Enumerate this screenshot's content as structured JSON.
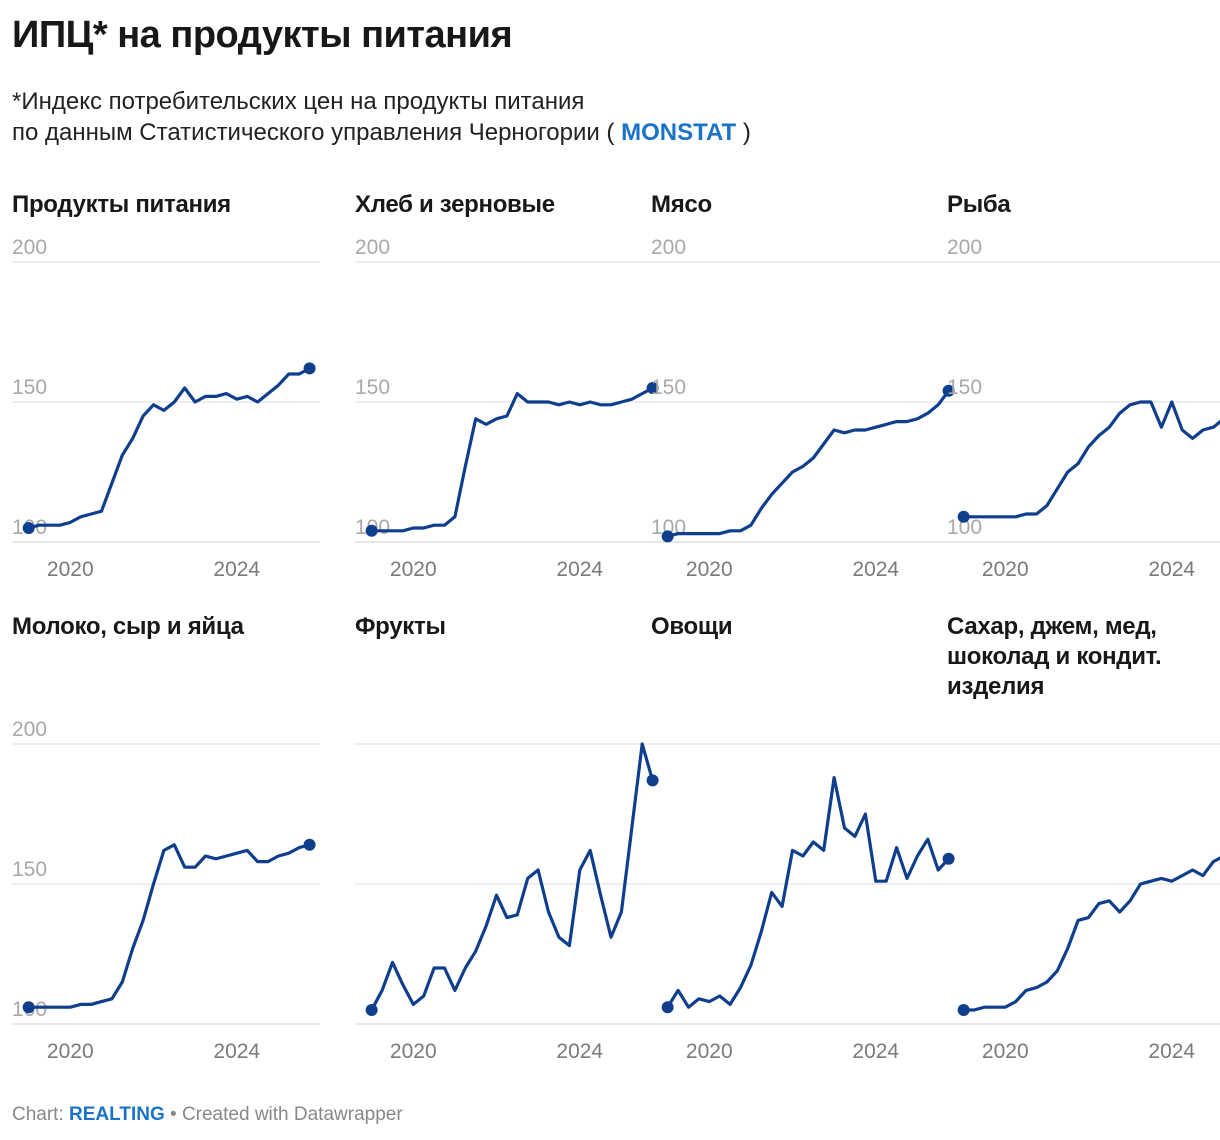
{
  "header": {
    "title": "ИПЦ* на продукты питания",
    "subtitle_line1": "*Индекс потребительских цен на продукты питания",
    "subtitle_line2_prefix": "по данным Статистического управления Черногории ( ",
    "subtitle_link": "MONSTAT",
    "subtitle_line2_suffix": " )"
  },
  "footer": {
    "prefix": "Chart: ",
    "brand": "REALTING",
    "suffix": " • Created with Datawrapper"
  },
  "colors": {
    "line": "#0f3f8c",
    "grid": "#dddddd",
    "tick": "#a8a8a8",
    "link": "#1a73c8"
  },
  "chart_data": [
    {
      "type": "line",
      "title": "Продукты питания",
      "ylim": [
        100,
        200
      ],
      "yticks": [
        "200",
        "150",
        "100"
      ],
      "xticks": [
        "2020",
        "2024"
      ],
      "xlim": [
        2018.6,
        2026.0
      ],
      "x": [
        2019.0,
        2019.25,
        2019.5,
        2019.75,
        2020.0,
        2020.25,
        2020.5,
        2020.75,
        2021.0,
        2021.25,
        2021.5,
        2021.75,
        2022.0,
        2022.25,
        2022.5,
        2022.75,
        2023.0,
        2023.25,
        2023.5,
        2023.75,
        2024.0,
        2024.25,
        2024.5,
        2024.75,
        2025.0,
        2025.25,
        2025.5,
        2025.75
      ],
      "y": [
        105,
        106,
        106,
        106,
        107,
        109,
        110,
        111,
        121,
        131,
        137,
        145,
        149,
        147,
        150,
        155,
        150,
        152,
        152,
        153,
        151,
        152,
        150,
        153,
        156,
        160,
        160,
        162
      ]
    },
    {
      "type": "line",
      "title": "Хлеб и зерновые",
      "ylim": [
        100,
        200
      ],
      "yticks": [
        "200",
        "150",
        "100"
      ],
      "xticks": [
        "2020",
        "2024"
      ],
      "xlim": [
        2018.6,
        2026.0
      ],
      "x": [
        2019.0,
        2019.25,
        2019.5,
        2019.75,
        2020.0,
        2020.25,
        2020.5,
        2020.75,
        2021.0,
        2021.25,
        2021.5,
        2021.75,
        2022.0,
        2022.25,
        2022.5,
        2022.75,
        2023.0,
        2023.25,
        2023.5,
        2023.75,
        2024.0,
        2024.25,
        2024.5,
        2024.75,
        2025.0,
        2025.25,
        2025.5,
        2025.75
      ],
      "y": [
        104,
        104,
        104,
        104,
        105,
        105,
        106,
        106,
        109,
        127,
        144,
        142,
        144,
        145,
        153,
        150,
        150,
        150,
        149,
        150,
        149,
        150,
        149,
        149,
        150,
        151,
        153,
        155
      ]
    },
    {
      "type": "line",
      "title": "Мясо",
      "ylim": [
        100,
        200
      ],
      "yticks": [
        "200",
        "150",
        "100"
      ],
      "xticks": [
        "2020",
        "2024"
      ],
      "xlim": [
        2018.6,
        2026.0
      ],
      "x": [
        2019.0,
        2019.25,
        2019.5,
        2019.75,
        2020.0,
        2020.25,
        2020.5,
        2020.75,
        2021.0,
        2021.25,
        2021.5,
        2021.75,
        2022.0,
        2022.25,
        2022.5,
        2022.75,
        2023.0,
        2023.25,
        2023.5,
        2023.75,
        2024.0,
        2024.25,
        2024.5,
        2024.75,
        2025.0,
        2025.25,
        2025.5,
        2025.75
      ],
      "y": [
        102,
        103,
        103,
        103,
        103,
        103,
        104,
        104,
        106,
        112,
        117,
        121,
        125,
        127,
        130,
        135,
        140,
        139,
        140,
        140,
        141,
        142,
        143,
        143,
        144,
        146,
        149,
        154
      ]
    },
    {
      "type": "line",
      "title": "Рыба",
      "ylim": [
        100,
        200
      ],
      "yticks": [
        "200",
        "150",
        "100"
      ],
      "xticks": [
        "2020",
        "2024"
      ],
      "xlim": [
        2018.6,
        2026.0
      ],
      "x": [
        2019.0,
        2019.25,
        2019.5,
        2019.75,
        2020.0,
        2020.25,
        2020.5,
        2020.75,
        2021.0,
        2021.25,
        2021.5,
        2021.75,
        2022.0,
        2022.25,
        2022.5,
        2022.75,
        2023.0,
        2023.25,
        2023.5,
        2023.75,
        2024.0,
        2024.25,
        2024.5,
        2024.75,
        2025.0,
        2025.25,
        2025.5,
        2025.75
      ],
      "y": [
        109,
        109,
        109,
        109,
        109,
        109,
        110,
        110,
        113,
        119,
        125,
        128,
        134,
        138,
        141,
        146,
        149,
        150,
        150,
        141,
        150,
        140,
        137,
        140,
        141,
        144,
        148,
        151
      ]
    },
    {
      "type": "line",
      "title": "Молоко, сыр и яйца",
      "ylim": [
        100,
        200
      ],
      "yticks": [
        "200",
        "150",
        "100"
      ],
      "xticks": [
        "2020",
        "2024"
      ],
      "xlim": [
        2018.6,
        2026.0
      ],
      "x": [
        2019.0,
        2019.25,
        2019.5,
        2019.75,
        2020.0,
        2020.25,
        2020.5,
        2020.75,
        2021.0,
        2021.25,
        2021.5,
        2021.75,
        2022.0,
        2022.25,
        2022.5,
        2022.75,
        2023.0,
        2023.25,
        2023.5,
        2023.75,
        2024.0,
        2024.25,
        2024.5,
        2024.75,
        2025.0,
        2025.25,
        2025.5,
        2025.75
      ],
      "y": [
        106,
        106,
        106,
        106,
        106,
        107,
        107,
        108,
        109,
        115,
        127,
        137,
        150,
        162,
        164,
        156,
        156,
        160,
        159,
        160,
        161,
        162,
        158,
        158,
        160,
        161,
        163,
        164
      ]
    },
    {
      "type": "line",
      "title": "Фрукты",
      "ylim": [
        100,
        200
      ],
      "yticks": [],
      "xticks": [
        "2020",
        "2024"
      ],
      "xlim": [
        2018.6,
        2026.0
      ],
      "x": [
        2019.0,
        2019.25,
        2019.5,
        2019.75,
        2020.0,
        2020.25,
        2020.5,
        2020.75,
        2021.0,
        2021.25,
        2021.5,
        2021.75,
        2022.0,
        2022.25,
        2022.5,
        2022.75,
        2023.0,
        2023.25,
        2023.5,
        2023.75,
        2024.0,
        2024.25,
        2024.5,
        2024.75,
        2025.0,
        2025.25,
        2025.5,
        2025.75
      ],
      "y": [
        105,
        112,
        122,
        114,
        107,
        110,
        120,
        120,
        112,
        120,
        126,
        135,
        146,
        138,
        139,
        152,
        155,
        140,
        131,
        128,
        155,
        162,
        146,
        131,
        140,
        170,
        200,
        187
      ]
    },
    {
      "type": "line",
      "title": "Овощи",
      "ylim": [
        100,
        200
      ],
      "yticks": [],
      "xticks": [
        "2020",
        "2024"
      ],
      "xlim": [
        2018.6,
        2026.0
      ],
      "x": [
        2019.0,
        2019.25,
        2019.5,
        2019.75,
        2020.0,
        2020.25,
        2020.5,
        2020.75,
        2021.0,
        2021.25,
        2021.5,
        2021.75,
        2022.0,
        2022.25,
        2022.5,
        2022.75,
        2023.0,
        2023.25,
        2023.5,
        2023.75,
        2024.0,
        2024.25,
        2024.5,
        2024.75,
        2025.0,
        2025.25,
        2025.5,
        2025.75
      ],
      "y": [
        106,
        112,
        106,
        109,
        108,
        110,
        107,
        113,
        121,
        133,
        147,
        142,
        162,
        160,
        165,
        162,
        188,
        170,
        167,
        175,
        151,
        151,
        163,
        152,
        160,
        166,
        155,
        159
      ]
    },
    {
      "type": "line",
      "title": "Сахар, джем, мед, шоколад и кондит. изделия",
      "ylim": [
        100,
        200
      ],
      "yticks": [],
      "xticks": [
        "2020",
        "2024"
      ],
      "xlim": [
        2018.6,
        2026.0
      ],
      "x": [
        2019.0,
        2019.25,
        2019.5,
        2019.75,
        2020.0,
        2020.25,
        2020.5,
        2020.75,
        2021.0,
        2021.25,
        2021.5,
        2021.75,
        2022.0,
        2022.25,
        2022.5,
        2022.75,
        2023.0,
        2023.25,
        2023.5,
        2023.75,
        2024.0,
        2024.25,
        2024.5,
        2024.75,
        2025.0,
        2025.25,
        2025.5,
        2025.75
      ],
      "y": [
        105,
        105,
        106,
        106,
        106,
        108,
        112,
        113,
        115,
        119,
        127,
        137,
        138,
        143,
        144,
        140,
        144,
        150,
        151,
        152,
        151,
        153,
        155,
        153,
        158,
        160,
        161,
        163
      ]
    }
  ]
}
